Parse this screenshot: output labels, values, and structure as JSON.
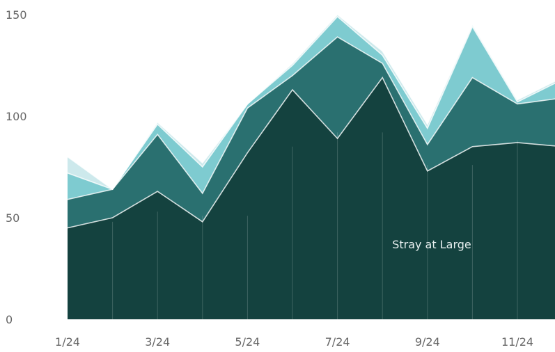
{
  "chart_data": {
    "type": "area",
    "stacked": true,
    "x_labels": [
      "1/24",
      "2/24",
      "3/24",
      "4/24",
      "5/24",
      "6/24",
      "7/24",
      "8/24",
      "9/24",
      "10/24",
      "11/24",
      "12/24"
    ],
    "x_tick_labels": [
      "1/24",
      "3/24",
      "5/24",
      "7/24",
      "9/24",
      "11/24"
    ],
    "y_ticks": [
      0,
      50,
      100,
      150
    ],
    "ylim": [
      0,
      150
    ],
    "series": [
      {
        "name": "Stray at Large",
        "color": "#14423f",
        "values": [
          45,
          50,
          63,
          48,
          82,
          113,
          89,
          119,
          73,
          85,
          87,
          85
        ]
      },
      {
        "color": "#2a7070",
        "values": [
          14,
          14,
          28,
          14,
          22,
          7,
          50,
          7,
          13,
          34,
          19,
          24
        ]
      },
      {
        "color": "#7ecbd0",
        "values": [
          13,
          0,
          5,
          13,
          2,
          5,
          10,
          4,
          8,
          25,
          1,
          9
        ]
      },
      {
        "color": "#cde9ec",
        "values": [
          8,
          0,
          1,
          2,
          0,
          1,
          1,
          2,
          2,
          1,
          1,
          1
        ]
      }
    ],
    "annotations": [
      {
        "text": "Stray at Large",
        "x": "8/24",
        "y": 35
      }
    ],
    "grid": false,
    "legend": "none"
  }
}
